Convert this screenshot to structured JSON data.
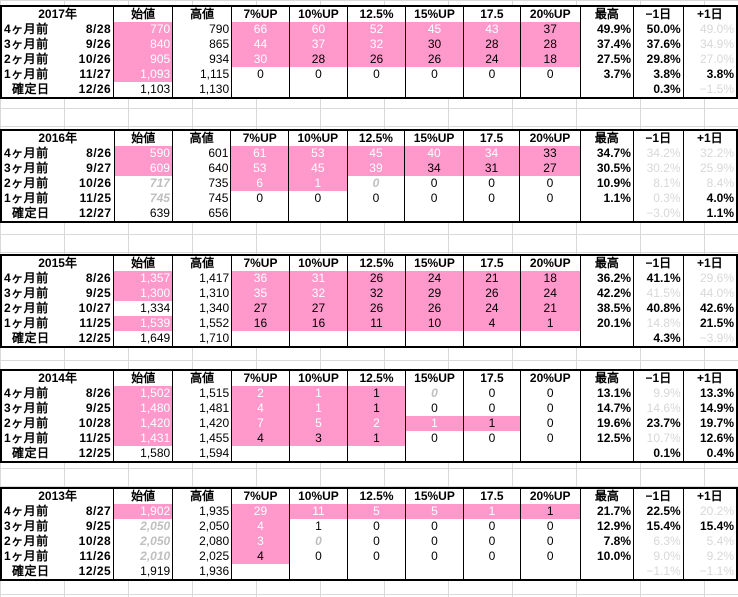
{
  "header": [
    "始値",
    "高値",
    "7%UP",
    "10%UP",
    "12.5%",
    "15%UP",
    "17.5",
    "20%UP",
    "最高",
    "−1日",
    "+1日"
  ],
  "blocks": [
    {
      "year": "2017年",
      "rows": [
        {
          "label": "4ヶ月前",
          "date": "8/28",
          "open": "770",
          "high": "790",
          "u7": "66",
          "u10": "60",
          "u125": "52",
          "u15": "45",
          "u175": "43",
          "u20": "37",
          "max": "49.9%",
          "m1": "50.0%",
          "p1": "49.0%"
        },
        {
          "label": "3ヶ月前",
          "date": "9/26",
          "open": "840",
          "high": "865",
          "u7": "44",
          "u10": "37",
          "u125": "32",
          "u15": "30",
          "u175": "28",
          "u20": "28",
          "max": "37.4%",
          "m1": "37.6%",
          "p1": "34.9%"
        },
        {
          "label": "2ヶ月前",
          "date": "10/26",
          "open": "905",
          "high": "934",
          "u7": "30",
          "u10": "28",
          "u125": "26",
          "u15": "26",
          "u175": "24",
          "u20": "18",
          "max": "27.5%",
          "m1": "29.8%",
          "p1": "27.0%"
        },
        {
          "label": "1ヶ月前",
          "date": "11/27",
          "open": "1,093",
          "high": "1,115",
          "u7": "0",
          "u10": "0",
          "u125": "0",
          "u15": "0",
          "u175": "0",
          "u20": "0",
          "max": "3.7%",
          "m1": "3.8%",
          "p1": "3.8%"
        }
      ],
      "confirm": {
        "label": "確定日",
        "date": "12/26",
        "open": "1,103",
        "high": "1,130",
        "m1": "0.3%",
        "p1": "−1.5%"
      }
    },
    {
      "year": "2016年",
      "rows": [
        {
          "label": "4ヶ月前",
          "date": "8/26",
          "open": "590",
          "high": "601",
          "u7": "61",
          "u10": "53",
          "u125": "45",
          "u15": "40",
          "u175": "34",
          "u20": "33",
          "max": "34.7%",
          "m1": "34.2%",
          "p1": "32.2%"
        },
        {
          "label": "3ヶ月前",
          "date": "9/27",
          "open": "609",
          "high": "640",
          "u7": "53",
          "u10": "45",
          "u125": "39",
          "u15": "34",
          "u175": "31",
          "u20": "27",
          "max": "30.5%",
          "m1": "30.2%",
          "p1": "25.9%"
        },
        {
          "label": "2ヶ月前",
          "date": "10/26",
          "open": "717",
          "high": "735",
          "u7": "6",
          "u10": "1",
          "u125": "0",
          "u15": "0",
          "u175": "0",
          "u20": "0",
          "max": "10.9%",
          "m1": "8.1%",
          "p1": "8.4%"
        },
        {
          "label": "1ヶ月前",
          "date": "11/25",
          "open": "745",
          "high": "745",
          "u7": "0",
          "u10": "0",
          "u125": "0",
          "u15": "0",
          "u175": "0",
          "u20": "0",
          "max": "1.1%",
          "m1": "0.3%",
          "p1": "4.0%"
        }
      ],
      "confirm": {
        "label": "確定日",
        "date": "12/27",
        "open": "639",
        "high": "656",
        "m1": "−3.0%",
        "p1": "1.1%"
      }
    },
    {
      "year": "2015年",
      "rows": [
        {
          "label": "4ヶ月前",
          "date": "8/26",
          "open": "1,357",
          "high": "1,417",
          "u7": "36",
          "u10": "31",
          "u125": "26",
          "u15": "24",
          "u175": "21",
          "u20": "18",
          "max": "36.2%",
          "m1": "41.1%",
          "p1": "29.6%"
        },
        {
          "label": "3ヶ月前",
          "date": "9/25",
          "open": "1,300",
          "high": "1,310",
          "u7": "35",
          "u10": "32",
          "u125": "32",
          "u15": "29",
          "u175": "26",
          "u20": "24",
          "max": "42.2%",
          "m1": "41.5%",
          "p1": "44.0%"
        },
        {
          "label": "2ヶ月前",
          "date": "10/27",
          "open": "1,334",
          "high": "1,340",
          "u7": "27",
          "u10": "27",
          "u125": "26",
          "u15": "26",
          "u175": "24",
          "u20": "21",
          "max": "38.5%",
          "m1": "40.8%",
          "p1": "42.6%"
        },
        {
          "label": "1ヶ月前",
          "date": "11/25",
          "open": "1,539",
          "high": "1,552",
          "u7": "16",
          "u10": "16",
          "u125": "11",
          "u15": "10",
          "u175": "4",
          "u20": "1",
          "max": "20.1%",
          "m1": "14.8%",
          "p1": "21.5%"
        }
      ],
      "confirm": {
        "label": "確定日",
        "date": "12/25",
        "open": "1,649",
        "high": "1,710",
        "m1": "4.3%",
        "p1": "−3.9%"
      }
    },
    {
      "year": "2014年",
      "rows": [
        {
          "label": "4ヶ月前",
          "date": "8/26",
          "open": "1,502",
          "high": "1,515",
          "u7": "2",
          "u10": "1",
          "u125": "1",
          "u15": "0",
          "u175": "0",
          "u20": "0",
          "max": "13.1%",
          "m1": "9.9%",
          "p1": "13.3%"
        },
        {
          "label": "3ヶ月前",
          "date": "9/25",
          "open": "1,480",
          "high": "1,481",
          "u7": "4",
          "u10": "1",
          "u125": "1",
          "u15": "0",
          "u175": "0",
          "u20": "0",
          "max": "14.7%",
          "m1": "14.6%",
          "p1": "14.9%"
        },
        {
          "label": "2ヶ月前",
          "date": "10/28",
          "open": "1,420",
          "high": "1,420",
          "u7": "7",
          "u10": "5",
          "u125": "2",
          "u15": "1",
          "u175": "1",
          "u20": "0",
          "max": "19.6%",
          "m1": "23.7%",
          "p1": "19.7%"
        },
        {
          "label": "1ヶ月前",
          "date": "11/25",
          "open": "1,431",
          "high": "1,455",
          "u7": "4",
          "u10": "3",
          "u125": "1",
          "u15": "0",
          "u175": "0",
          "u20": "0",
          "max": "12.5%",
          "m1": "10.7%",
          "p1": "12.6%"
        }
      ],
      "confirm": {
        "label": "確定日",
        "date": "12/25",
        "open": "1,580",
        "high": "1,594",
        "m1": "0.1%",
        "p1": "0.4%"
      }
    },
    {
      "year": "2013年",
      "rows": [
        {
          "label": "4ヶ月前",
          "date": "8/27",
          "open": "1,902",
          "high": "1,935",
          "u7": "29",
          "u10": "11",
          "u125": "5",
          "u15": "5",
          "u175": "1",
          "u20": "1",
          "max": "21.7%",
          "m1": "22.5%",
          "p1": "20.2%"
        },
        {
          "label": "3ヶ月前",
          "date": "9/25",
          "open": "2,050",
          "high": "2,050",
          "u7": "4",
          "u10": "1",
          "u125": "0",
          "u15": "0",
          "u175": "0",
          "u20": "0",
          "max": "12.9%",
          "m1": "15.4%",
          "p1": "15.4%"
        },
        {
          "label": "2ヶ月前",
          "date": "10/28",
          "open": "2,050",
          "high": "2,080",
          "u7": "3",
          "u10": "0",
          "u125": "0",
          "u15": "0",
          "u175": "0",
          "u20": "0",
          "max": "7.8%",
          "m1": "6.3%",
          "p1": "5.4%"
        },
        {
          "label": "1ヶ月前",
          "date": "11/26",
          "open": "2,010",
          "high": "2,025",
          "u7": "4",
          "u10": "0",
          "u125": "0",
          "u15": "0",
          "u175": "0",
          "u20": "0",
          "max": "10.0%",
          "m1": "9.0%",
          "p1": "9.2%"
        }
      ],
      "confirm": {
        "label": "確定日",
        "date": "12/25",
        "open": "1,919",
        "high": "1,936",
        "m1": "−1.1%",
        "p1": "−1.1%"
      }
    }
  ]
}
